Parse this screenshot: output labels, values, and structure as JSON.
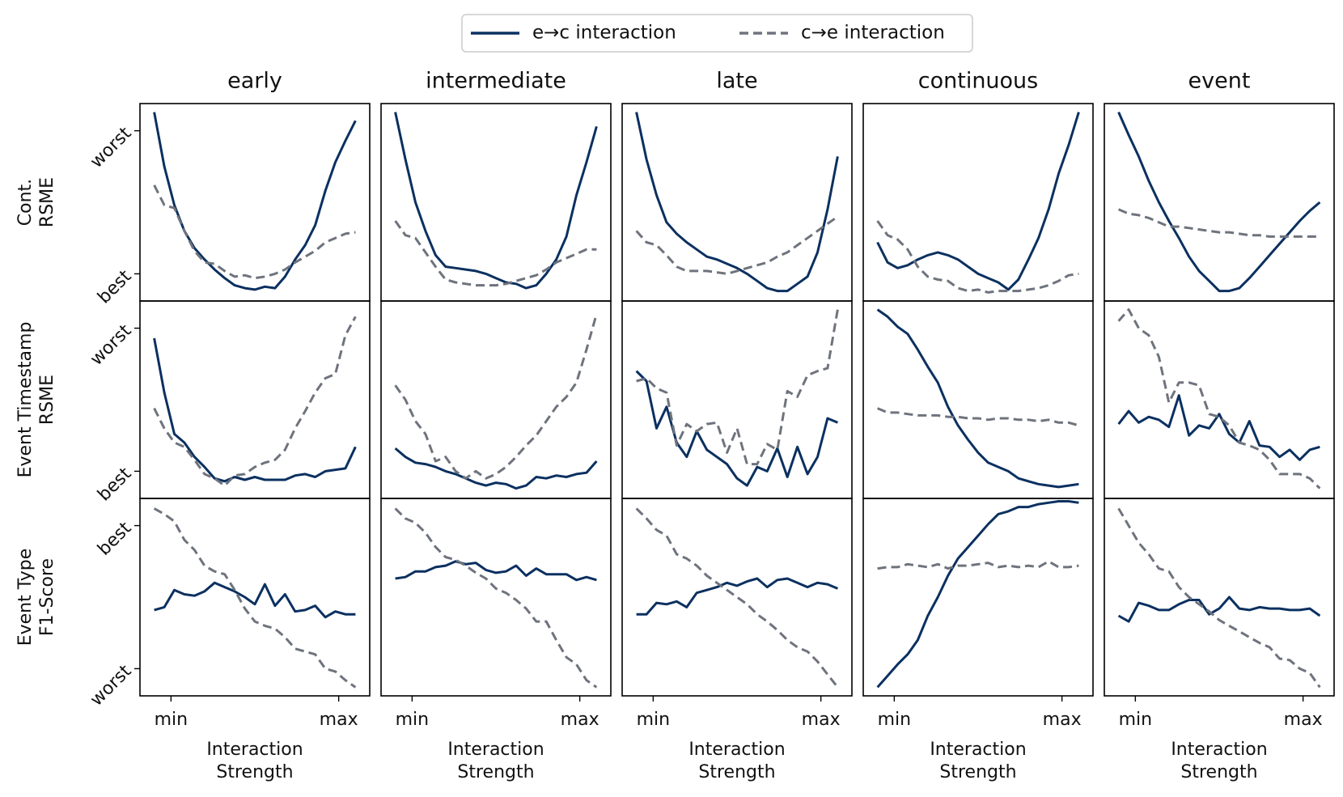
{
  "chart_data": {
    "type": "line",
    "series": [
      {
        "name": "e→c interaction",
        "color": "#0b3060",
        "dash": false
      },
      {
        "name": "c→e interaction",
        "color": "#6e737d",
        "dash": true
      }
    ],
    "columns": [
      "early",
      "intermediate",
      "late",
      "continuous",
      "event"
    ],
    "row_labels": [
      [
        "Cont.",
        "RSME"
      ],
      [
        "Event Timestamp",
        "RSME"
      ],
      [
        "Event Type",
        "F1-Score"
      ]
    ],
    "xlabel": [
      "Interaction",
      "Strength"
    ],
    "x": [
      -0.1,
      -0.04,
      0.02,
      0.08,
      0.14,
      0.2,
      0.26,
      0.32,
      0.38,
      0.44,
      0.5,
      0.56,
      0.62,
      0.68,
      0.74,
      0.8,
      0.86,
      0.92,
      0.98,
      1.04,
      1.1
    ],
    "xlim": [
      -0.185,
      1.185
    ],
    "xticks": [
      {
        "value": 0,
        "label": "min"
      },
      {
        "value": 1,
        "label": "max"
      }
    ],
    "ylim": [
      -0.19,
      1.19
    ],
    "rows": [
      {
        "yticks": [
          {
            "value": 0,
            "label": "best"
          },
          {
            "value": 1,
            "label": "worst"
          }
        ],
        "panels": [
          {
            "values": [
              [
                1.13,
                0.75,
                0.48,
                0.3,
                0.18,
                0.1,
                0.03,
                -0.03,
                -0.08,
                -0.1,
                -0.11,
                -0.09,
                -0.1,
                -0.02,
                0.1,
                0.2,
                0.34,
                0.58,
                0.78,
                0.93,
                1.07
              ],
              [
                0.62,
                0.48,
                0.46,
                0.3,
                0.16,
                0.08,
                0.07,
                0.02,
                -0.02,
                -0.01,
                -0.03,
                -0.02,
                0.0,
                0.03,
                0.08,
                0.12,
                0.16,
                0.22,
                0.25,
                0.28,
                0.29
              ]
            ]
          },
          {
            "values": [
              [
                1.13,
                0.8,
                0.5,
                0.3,
                0.13,
                0.05,
                0.04,
                0.03,
                0.02,
                0.0,
                -0.03,
                -0.06,
                -0.07,
                -0.1,
                -0.08,
                0.0,
                0.1,
                0.26,
                0.55,
                0.78,
                1.03
              ],
              [
                0.37,
                0.27,
                0.25,
                0.15,
                0.05,
                -0.04,
                -0.06,
                -0.07,
                -0.08,
                -0.08,
                -0.08,
                -0.07,
                -0.05,
                -0.03,
                -0.01,
                0.03,
                0.08,
                0.11,
                0.14,
                0.17,
                0.17
              ]
            ]
          },
          {
            "values": [
              [
                1.13,
                0.8,
                0.55,
                0.36,
                0.28,
                0.22,
                0.17,
                0.12,
                0.1,
                0.07,
                0.04,
                0.0,
                -0.05,
                -0.1,
                -0.12,
                -0.12,
                -0.07,
                -0.02,
                0.15,
                0.45,
                0.82
              ],
              [
                0.3,
                0.22,
                0.2,
                0.13,
                0.05,
                0.02,
                0.02,
                0.02,
                0.01,
                0.0,
                0.02,
                0.04,
                0.06,
                0.08,
                0.12,
                0.15,
                0.2,
                0.25,
                0.3,
                0.35,
                0.4
              ]
            ]
          },
          {
            "values": [
              [
                0.22,
                0.08,
                0.04,
                0.06,
                0.1,
                0.13,
                0.15,
                0.13,
                0.1,
                0.05,
                0.0,
                -0.03,
                -0.06,
                -0.11,
                -0.04,
                0.1,
                0.25,
                0.45,
                0.7,
                0.9,
                1.13
              ],
              [
                0.37,
                0.27,
                0.24,
                0.17,
                0.05,
                -0.02,
                -0.04,
                -0.05,
                -0.1,
                -0.12,
                -0.11,
                -0.13,
                -0.12,
                -0.12,
                -0.12,
                -0.11,
                -0.1,
                -0.08,
                -0.05,
                -0.01,
                0.0
              ]
            ]
          },
          {
            "values": [
              [
                1.13,
                0.97,
                0.82,
                0.65,
                0.5,
                0.37,
                0.25,
                0.12,
                0.02,
                -0.05,
                -0.12,
                -0.12,
                -0.1,
                -0.03,
                0.05,
                0.13,
                0.21,
                0.29,
                0.37,
                0.44,
                0.5
              ],
              [
                0.45,
                0.42,
                0.41,
                0.39,
                0.36,
                0.33,
                0.33,
                0.32,
                0.31,
                0.3,
                0.29,
                0.29,
                0.28,
                0.27,
                0.27,
                0.26,
                0.26,
                0.26,
                0.26,
                0.26,
                0.26
              ]
            ]
          }
        ]
      },
      {
        "yticks": [
          {
            "value": 0,
            "label": "best"
          },
          {
            "value": 1,
            "label": "worst"
          }
        ],
        "panels": [
          {
            "values": [
              [
                0.93,
                0.55,
                0.26,
                0.2,
                0.1,
                0.03,
                -0.05,
                -0.07,
                -0.04,
                -0.06,
                -0.04,
                -0.06,
                -0.06,
                -0.06,
                -0.03,
                -0.02,
                -0.04,
                0.0,
                0.01,
                0.02,
                0.17
              ],
              [
                0.44,
                0.3,
                0.2,
                0.17,
                0.08,
                -0.02,
                -0.05,
                -0.1,
                -0.03,
                -0.02,
                0.03,
                0.06,
                0.08,
                0.15,
                0.3,
                0.42,
                0.55,
                0.65,
                0.68,
                0.95,
                1.08
              ]
            ]
          },
          {
            "values": [
              [
                0.16,
                0.1,
                0.06,
                0.05,
                0.03,
                0.0,
                -0.02,
                -0.05,
                -0.08,
                -0.1,
                -0.08,
                -0.09,
                -0.12,
                -0.1,
                -0.04,
                -0.05,
                -0.03,
                -0.04,
                -0.02,
                -0.01,
                0.07
              ],
              [
                0.6,
                0.5,
                0.35,
                0.26,
                0.07,
                0.1,
                0.0,
                -0.05,
                0.0,
                -0.05,
                -0.02,
                0.03,
                0.1,
                0.18,
                0.25,
                0.35,
                0.45,
                0.52,
                0.62,
                0.85,
                1.1
              ]
            ]
          },
          {
            "values": [
              [
                0.7,
                0.63,
                0.3,
                0.45,
                0.2,
                0.1,
                0.28,
                0.15,
                0.1,
                0.05,
                -0.05,
                -0.1,
                0.03,
                0.0,
                0.16,
                -0.04,
                0.17,
                -0.02,
                0.1,
                0.37,
                0.34
              ],
              [
                0.63,
                0.65,
                0.58,
                0.55,
                0.18,
                0.33,
                0.28,
                0.33,
                0.34,
                0.13,
                0.3,
                0.05,
                0.05,
                0.19,
                0.15,
                0.56,
                0.52,
                0.67,
                0.7,
                0.72,
                1.13
              ]
            ]
          },
          {
            "values": [
              [
                1.13,
                1.08,
                1.01,
                0.96,
                0.85,
                0.73,
                0.62,
                0.45,
                0.32,
                0.22,
                0.13,
                0.06,
                0.03,
                0.0,
                -0.05,
                -0.07,
                -0.09,
                -0.1,
                -0.11,
                -0.1,
                -0.09
              ],
              [
                0.44,
                0.41,
                0.41,
                0.4,
                0.39,
                0.39,
                0.39,
                0.38,
                0.38,
                0.37,
                0.37,
                0.36,
                0.37,
                0.37,
                0.36,
                0.36,
                0.35,
                0.36,
                0.34,
                0.34,
                0.32
              ]
            ]
          },
          {
            "values": [
              [
                0.33,
                0.42,
                0.34,
                0.38,
                0.36,
                0.31,
                0.53,
                0.25,
                0.32,
                0.3,
                0.4,
                0.26,
                0.2,
                0.35,
                0.18,
                0.17,
                0.1,
                0.15,
                0.08,
                0.15,
                0.17
              ],
              [
                1.05,
                1.13,
                1.0,
                0.95,
                0.8,
                0.48,
                0.62,
                0.62,
                0.6,
                0.4,
                0.38,
                0.32,
                0.2,
                0.18,
                0.15,
                0.08,
                -0.02,
                -0.02,
                -0.02,
                -0.05,
                -0.12
              ]
            ]
          }
        ]
      },
      {
        "yticks": [
          {
            "value": 0,
            "label": "worst"
          },
          {
            "value": 1,
            "label": "best"
          }
        ],
        "panels": [
          {
            "values": [
              [
                0.41,
                0.43,
                0.55,
                0.52,
                0.51,
                0.54,
                0.6,
                0.57,
                0.54,
                0.5,
                0.45,
                0.59,
                0.44,
                0.52,
                0.4,
                0.41,
                0.44,
                0.36,
                0.4,
                0.38,
                0.38
              ],
              [
                1.12,
                1.08,
                1.03,
                0.9,
                0.83,
                0.72,
                0.68,
                0.66,
                0.55,
                0.42,
                0.33,
                0.3,
                0.28,
                0.22,
                0.14,
                0.12,
                0.1,
                0.0,
                -0.02,
                -0.08,
                -0.13
              ]
            ]
          },
          {
            "values": [
              [
                0.63,
                0.64,
                0.68,
                0.68,
                0.71,
                0.72,
                0.75,
                0.73,
                0.74,
                0.69,
                0.67,
                0.68,
                0.72,
                0.65,
                0.7,
                0.66,
                0.66,
                0.66,
                0.62,
                0.64,
                0.62
              ],
              [
                1.12,
                1.05,
                1.02,
                0.95,
                0.85,
                0.78,
                0.76,
                0.72,
                0.67,
                0.63,
                0.56,
                0.53,
                0.48,
                0.42,
                0.33,
                0.33,
                0.2,
                0.08,
                0.03,
                -0.08,
                -0.13
              ]
            ]
          },
          {
            "values": [
              [
                0.38,
                0.38,
                0.46,
                0.45,
                0.47,
                0.43,
                0.53,
                0.55,
                0.57,
                0.6,
                0.58,
                0.61,
                0.63,
                0.57,
                0.62,
                0.63,
                0.6,
                0.57,
                0.6,
                0.59,
                0.56
              ],
              [
                1.12,
                1.05,
                0.97,
                0.93,
                0.8,
                0.77,
                0.72,
                0.65,
                0.6,
                0.55,
                0.5,
                0.45,
                0.38,
                0.33,
                0.27,
                0.2,
                0.15,
                0.12,
                0.05,
                -0.04,
                -0.13
              ]
            ]
          },
          {
            "values": [
              [
                -0.13,
                -0.05,
                0.03,
                0.1,
                0.2,
                0.37,
                0.5,
                0.65,
                0.77,
                0.85,
                0.93,
                1.01,
                1.08,
                1.1,
                1.13,
                1.13,
                1.15,
                1.16,
                1.17,
                1.17,
                1.16
              ],
              [
                0.7,
                0.71,
                0.71,
                0.73,
                0.72,
                0.71,
                0.73,
                0.7,
                0.72,
                0.72,
                0.73,
                0.74,
                0.71,
                0.72,
                0.71,
                0.72,
                0.71,
                0.75,
                0.71,
                0.71,
                0.72
              ]
            ]
          },
          {
            "values": [
              [
                0.37,
                0.33,
                0.46,
                0.44,
                0.41,
                0.41,
                0.45,
                0.48,
                0.48,
                0.38,
                0.42,
                0.5,
                0.42,
                0.41,
                0.43,
                0.42,
                0.42,
                0.41,
                0.41,
                0.42,
                0.37
              ],
              [
                1.12,
                1.0,
                0.88,
                0.8,
                0.7,
                0.68,
                0.57,
                0.5,
                0.45,
                0.4,
                0.34,
                0.3,
                0.26,
                0.22,
                0.18,
                0.15,
                0.07,
                0.06,
                0.0,
                -0.03,
                -0.13
              ]
            ]
          }
        ]
      }
    ]
  }
}
